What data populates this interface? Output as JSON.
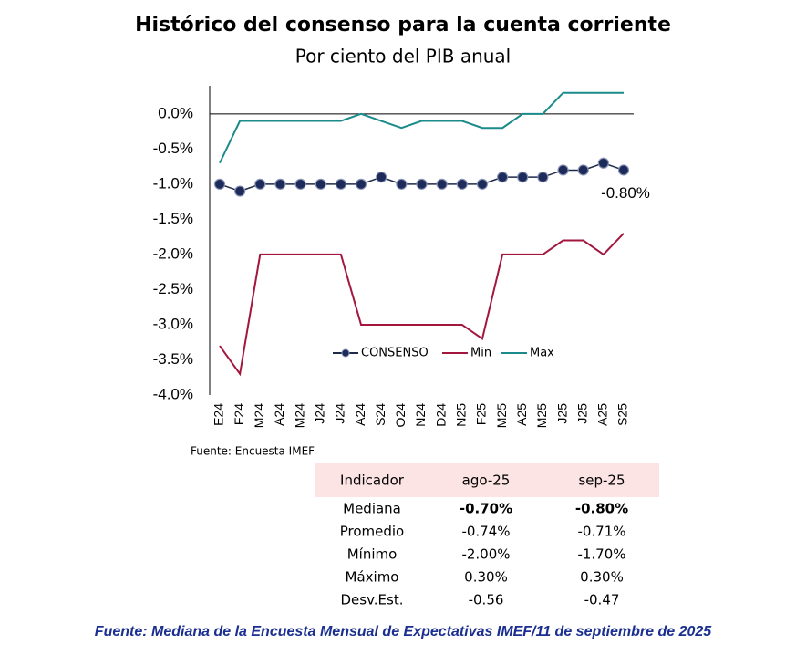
{
  "chart_data": {
    "type": "line",
    "title": "Histórico del consenso para la cuenta corriente",
    "subtitle": "Por ciento del PIB anual",
    "categories": [
      "E24",
      "F24",
      "M24",
      "A24",
      "M24",
      "J24",
      "J24",
      "A24",
      "S24",
      "O24",
      "N24",
      "D24",
      "N25",
      "F25",
      "M25",
      "A25",
      "M25",
      "J25",
      "J25",
      "A25",
      "S25"
    ],
    "series": [
      {
        "name": "CONSENSO",
        "color": "#1f2a4a",
        "values": [
          -1.0,
          -1.1,
          -1.0,
          -1.0,
          -1.0,
          -1.0,
          -1.0,
          -1.0,
          -0.9,
          -1.0,
          -1.0,
          -1.0,
          -1.0,
          -1.0,
          -0.9,
          -0.9,
          -0.9,
          -0.8,
          -0.8,
          -0.7,
          -0.8
        ],
        "value_labels": [
          null,
          null,
          null,
          null,
          null,
          null,
          null,
          null,
          null,
          null,
          null,
          null,
          null,
          null,
          null,
          null,
          null,
          null,
          null,
          null,
          "-0.80%"
        ]
      },
      {
        "name": "Min",
        "color": "#a3173f",
        "values": [
          -3.3,
          -3.7,
          -2.0,
          -2.0,
          -2.0,
          -2.0,
          -2.0,
          -3.0,
          -3.0,
          -3.0,
          -3.0,
          -3.0,
          -3.0,
          -3.2,
          -2.0,
          -2.0,
          -2.0,
          -1.8,
          -1.8,
          -2.0,
          -1.7
        ]
      },
      {
        "name": "Max",
        "color": "#1a8a8a",
        "values": [
          -0.7,
          -0.1,
          -0.1,
          -0.1,
          -0.1,
          -0.1,
          -0.1,
          0.0,
          -0.1,
          -0.2,
          -0.1,
          -0.1,
          -0.1,
          -0.2,
          -0.2,
          0.0,
          0.0,
          0.3,
          0.3,
          0.3,
          0.3
        ]
      }
    ],
    "ylim": [
      -4.0,
      0.4
    ],
    "yticks": [
      {
        "value": 0.0,
        "label": "0.0%"
      },
      {
        "value": -0.5,
        "label": "-0.5%"
      },
      {
        "value": -1.0,
        "label": "-1.0%"
      },
      {
        "value": -1.5,
        "label": "-1.5%"
      },
      {
        "value": -2.0,
        "label": "-2.0%"
      },
      {
        "value": -2.5,
        "label": "-2.5%"
      },
      {
        "value": -3.0,
        "label": "-3.0%"
      },
      {
        "value": -3.5,
        "label": "-3.5%"
      },
      {
        "value": -4.0,
        "label": "-4.0%"
      }
    ],
    "source": "Fuente: Encuesta IMEF"
  },
  "table": {
    "header": [
      "Indicador",
      "ago-25",
      "sep-25"
    ],
    "rows": [
      [
        "Mediana",
        "-0.70%",
        "-0.80%"
      ],
      [
        "Promedio",
        "-0.74%",
        "-0.71%"
      ],
      [
        "Mínimo",
        "-2.00%",
        "-1.70%"
      ],
      [
        "Máximo",
        "0.30%",
        "0.30%"
      ],
      [
        "Desv.Est.",
        "-0.56",
        "-0.47"
      ]
    ]
  },
  "footer": "Fuente: Mediana de la Encuesta Mensual de Expectativas IMEF/11 de septiembre de 2025"
}
